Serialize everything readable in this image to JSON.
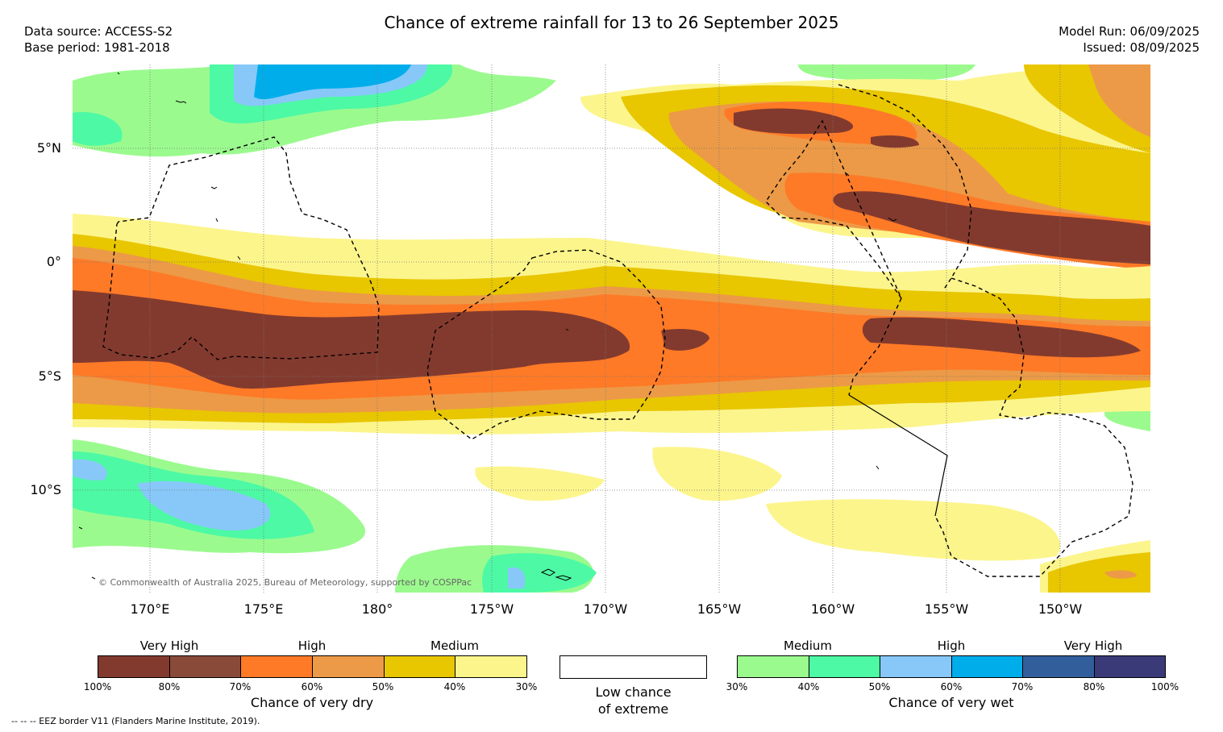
{
  "header": {
    "title": "Chance of extreme rainfall for 13 to 26 September 2025",
    "data_source": "Data source: ACCESS-S2",
    "base_period": "Base period: 1981-2018",
    "model_run": "Model Run: 06/09/2025",
    "issued": "Issued: 08/09/2025"
  },
  "map": {
    "lat_labels": [
      "5°N",
      "0°",
      "5°S",
      "10°S"
    ],
    "lon_labels": [
      "170°E",
      "175°E",
      "180°",
      "175°W",
      "170°W",
      "165°W",
      "160°W",
      "155°W",
      "150°W"
    ],
    "copyright": "© Commonwealth of Australia 2025, Bureau of Meteorology, supported by COSPPac",
    "eez_note": "--  --  -- EEZ border V11 (Flanders Marine Institute, 2019)."
  },
  "dry_scale": {
    "labels": [
      "Very High",
      "High",
      "Medium"
    ],
    "ticks": [
      "100%",
      "80%",
      "70%",
      "60%",
      "50%",
      "40%",
      "30%"
    ],
    "caption": "Chance of very dry",
    "colors": [
      "#833a2e",
      "#8a4a3a",
      "#fe7a27",
      "#ec9a47",
      "#e8c600",
      "#fcf58c"
    ]
  },
  "low_chance": {
    "label_line1": "Low chance",
    "label_line2": "of extreme"
  },
  "wet_scale": {
    "labels": [
      "Medium",
      "High",
      "Very High"
    ],
    "ticks": [
      "30%",
      "40%",
      "50%",
      "60%",
      "70%",
      "80%",
      "100%"
    ],
    "caption": "Chance of very wet",
    "colors": [
      "#9bfa8e",
      "#4df9a4",
      "#87c8f8",
      "#00adeb",
      "#325f9c",
      "#3b3a78"
    ]
  }
}
